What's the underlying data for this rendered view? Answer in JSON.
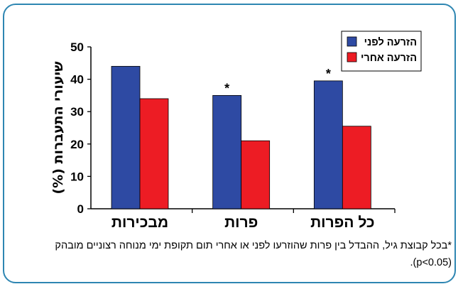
{
  "chart_data": {
    "type": "bar",
    "ylabel": "שיעורי התעברות (%)",
    "ylim": [
      0,
      50
    ],
    "yticks": [
      0,
      10,
      20,
      30,
      40,
      50
    ],
    "categories": [
      "מבכירות",
      "פרות",
      "כל הפרות"
    ],
    "series": [
      {
        "name": "הזרעה לפני",
        "color": "#2e4aa3",
        "values": [
          44,
          35,
          39.5
        ]
      },
      {
        "name": "הזרעה אחרי",
        "color": "#ed1c24",
        "values": [
          34,
          21,
          25.5
        ]
      }
    ],
    "annotations": [
      {
        "category": "פרות",
        "text": "*"
      },
      {
        "category": "כל הפרות",
        "text": "*"
      }
    ],
    "legend_position": "top-right",
    "grid": false
  },
  "footnote": {
    "line1": "*בכל קבוצת גיל, ההבדל בין פרות שהוזרעו לפני או אחרי תום תקופת ימי מנוחה רצוניים מובהק",
    "line2": "(p<0.05)."
  },
  "colors": {
    "frame": "#2e86b2"
  }
}
